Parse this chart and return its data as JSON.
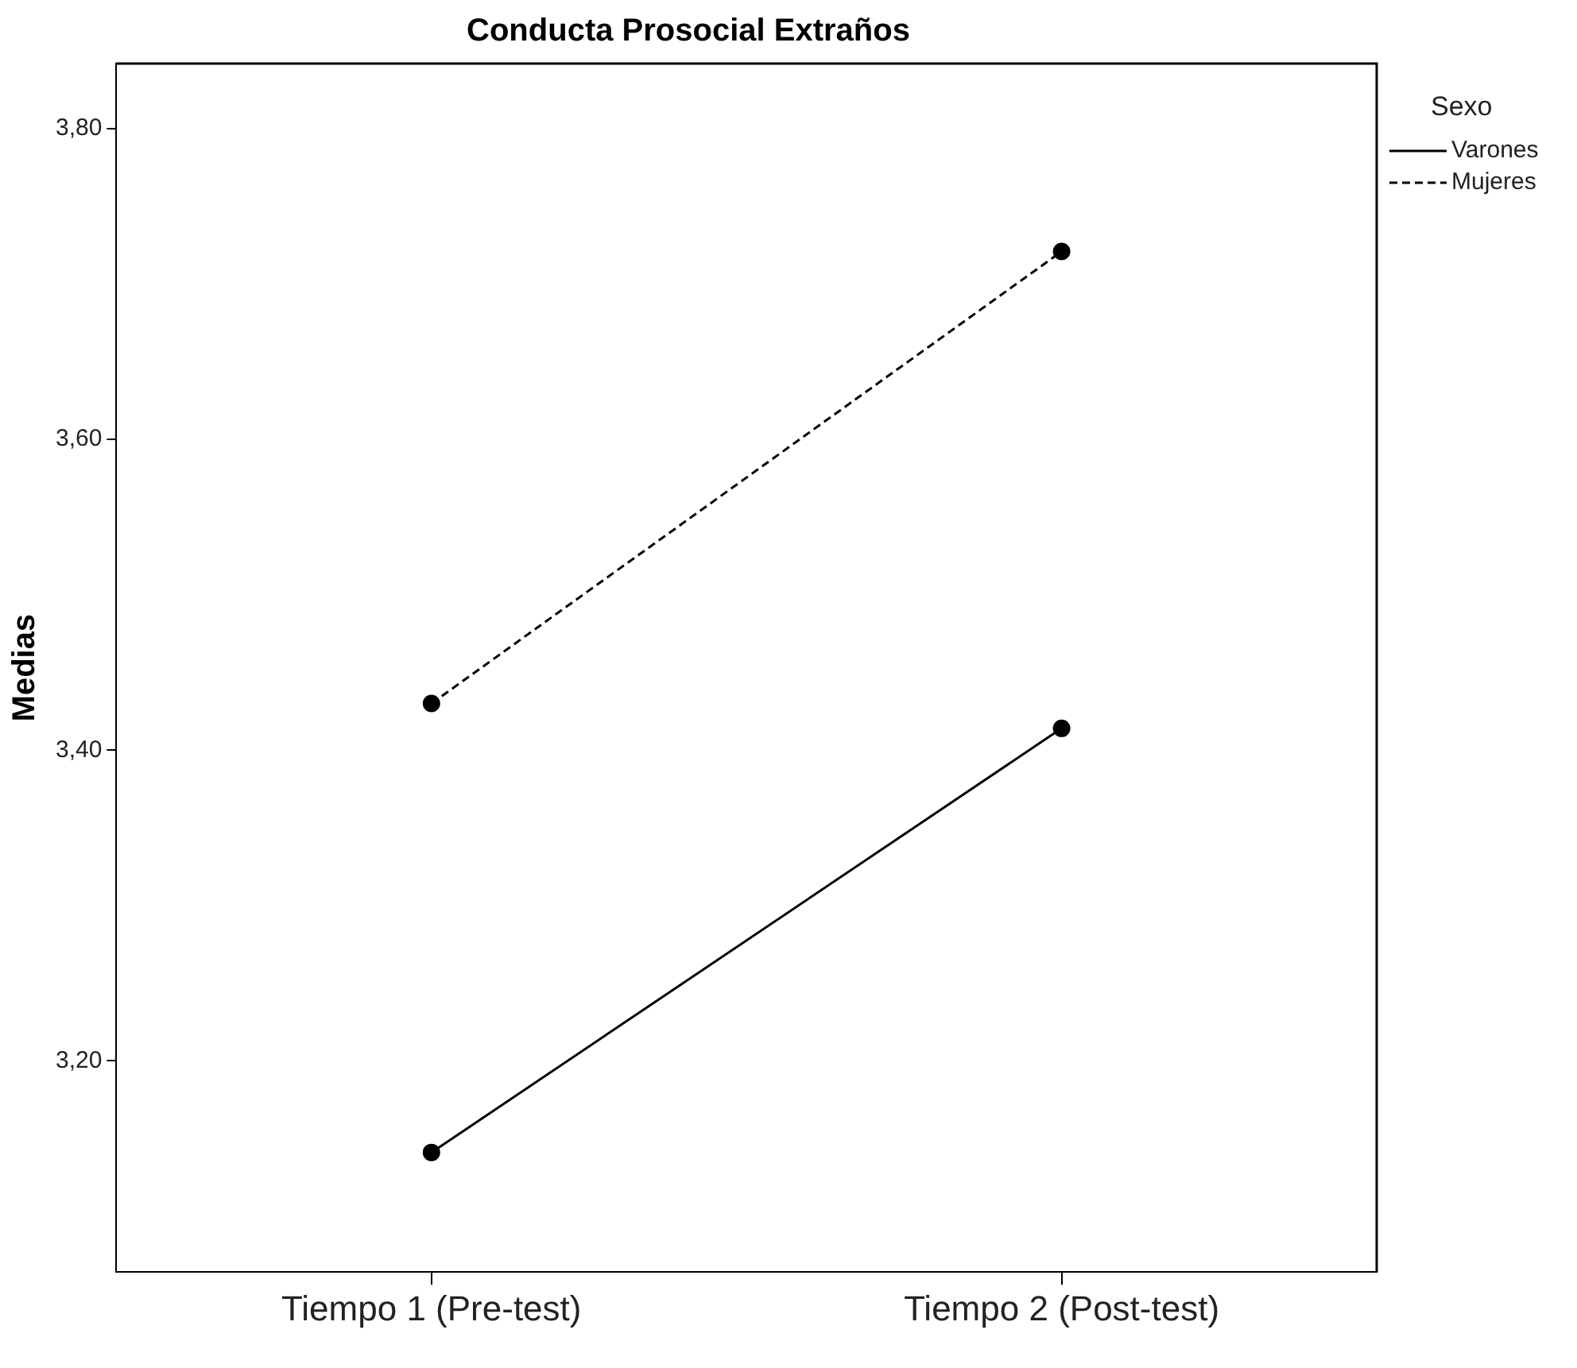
{
  "chart_data": {
    "type": "line",
    "title": "Conducta Prosocial Extraños",
    "ylabel": "Medias",
    "legend_title": "Sexo",
    "legend": "top right",
    "marker": "circle",
    "grid": false,
    "categories": [
      "Tiempo 1 (Pre-test)",
      "Tiempo 2 (Post-test)"
    ],
    "ylim": [
      3.064,
      3.842
    ],
    "yticks": [
      {
        "value": 3.2,
        "label": "3,20"
      },
      {
        "value": 3.4,
        "label": "3,40"
      },
      {
        "value": 3.6,
        "label": "3,60"
      },
      {
        "value": 3.8,
        "label": "3,80"
      }
    ],
    "series": [
      {
        "name": "Varones",
        "color": "#000000",
        "line_style": "solid",
        "values": [
          3.141,
          3.414
        ]
      },
      {
        "name": "Mujeres",
        "color": "#000000",
        "line_style": "dashed",
        "values": [
          3.43,
          3.721
        ]
      }
    ]
  }
}
